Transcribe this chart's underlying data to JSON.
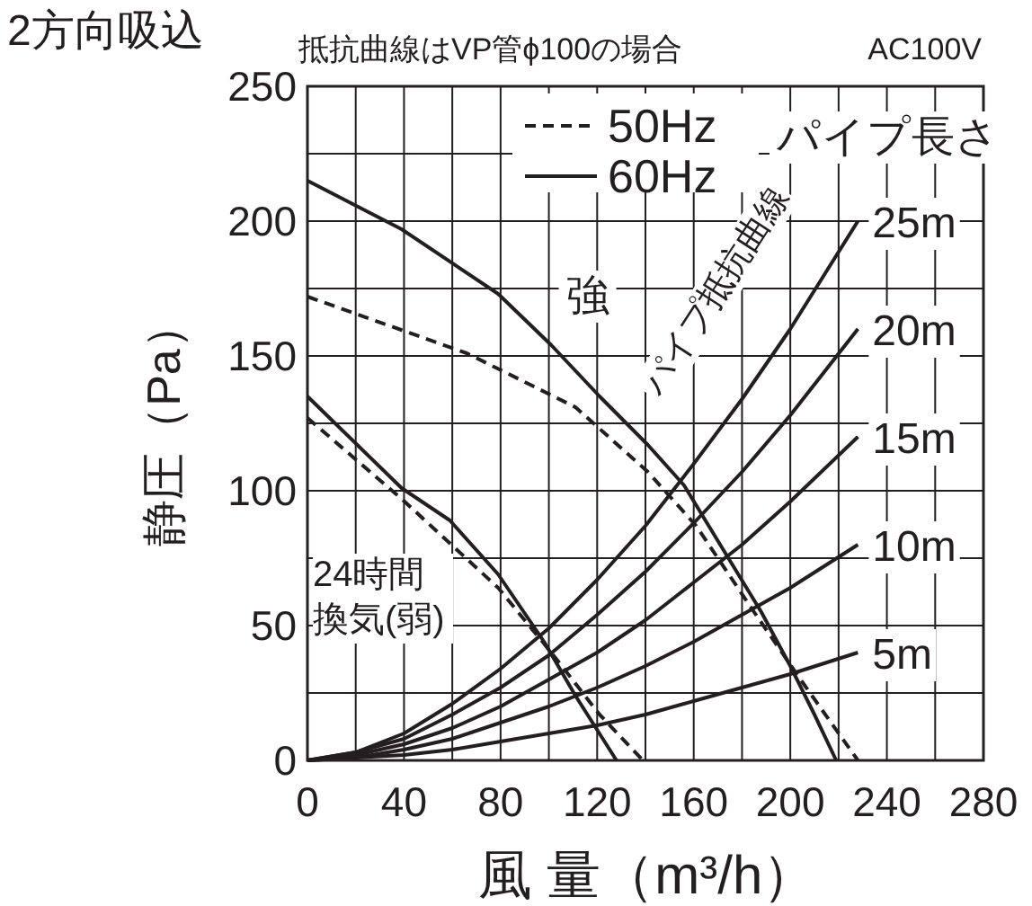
{
  "chart_data": {
    "type": "line",
    "title": "2方向吸込",
    "subtitle": "抵抗曲線はVP管ϕ100の場合",
    "xlabel": "風 量（m³/h）",
    "ylabel": "静圧（Pa）",
    "legend_title": "パイプ長さ",
    "xlim": [
      0,
      280
    ],
    "ylim": [
      0,
      250
    ],
    "xticks": [
      0,
      {
        "value": 20,
        "label": null
      },
      40,
      {
        "value": 60,
        "label": null
      },
      80,
      {
        "value": 100,
        "label": null
      },
      120,
      {
        "value": 140,
        "label": null
      },
      160,
      {
        "value": 180,
        "label": null
      },
      200,
      {
        "value": 220,
        "label": null
      },
      240,
      {
        "value": 260,
        "label": null
      },
      280
    ],
    "yticks": [
      0,
      {
        "value": 25,
        "label": null
      },
      50,
      {
        "value": 75,
        "label": null
      },
      100,
      {
        "value": 125,
        "label": null
      },
      150,
      {
        "value": 175,
        "label": null
      },
      200,
      {
        "value": 225,
        "label": null
      },
      250
    ],
    "grid": true,
    "legend": "top",
    "annotations": [
      "AC100V",
      {
        "text": "強",
        "x": 116,
        "y": 173
      },
      "パイプ抵抗曲線",
      "24時間換気(弱)"
    ],
    "series": [
      {
        "name": "60Hz",
        "color": "#231f20",
        "line_style": "solid",
        "x": [
          0,
          39,
          79,
          101,
          121,
          141,
          156,
          173,
          188,
          200,
          210,
          219
        ],
        "values": [
          215,
          197,
          173,
          154,
          135,
          117,
          102,
          77,
          55,
          35,
          17,
          0
        ]
      },
      {
        "name": "50Hz",
        "color": "#231f20",
        "line_style": "dashed",
        "x": [
          0,
          66,
          111,
          141,
          161,
          185,
          205,
          228
        ],
        "values": [
          172,
          151,
          131,
          107,
          87,
          55,
          29,
          0
        ]
      },
      {
        "color": "#231f20",
        "line_style": "solid",
        "x": [
          0,
          39,
          59,
          79,
          98,
          111,
          128
        ],
        "values": [
          135,
          101,
          89,
          69,
          44,
          24,
          0
        ]
      },
      {
        "color": "#231f20",
        "line_style": "dashed",
        "x": [
          0,
          39,
          79,
          101,
          121,
          139
        ],
        "values": [
          127,
          97,
          64,
          40,
          17,
          0
        ]
      },
      {
        "name": "25m",
        "color": "#231f20",
        "line_style": "solid",
        "x": [
          0,
          20,
          40,
          60,
          80,
          100,
          120,
          140,
          160,
          180,
          200,
          228
        ],
        "values": [
          0,
          3,
          10,
          21,
          34,
          49,
          67,
          87,
          110,
          134,
          160,
          200
        ]
      },
      {
        "name": "20m",
        "color": "#231f20",
        "line_style": "solid",
        "x": [
          0,
          20,
          40,
          60,
          80,
          100,
          120,
          140,
          160,
          180,
          200,
          228
        ],
        "values": [
          0,
          3,
          8,
          17,
          27,
          39,
          54,
          70,
          88,
          107,
          128,
          160
        ]
      },
      {
        "name": "15m",
        "color": "#231f20",
        "line_style": "solid",
        "x": [
          0,
          20,
          40,
          60,
          80,
          100,
          120,
          140,
          160,
          180,
          200,
          228
        ],
        "values": [
          0,
          2,
          6,
          12,
          20,
          30,
          40,
          52,
          66,
          80,
          96,
          120
        ]
      },
      {
        "name": "10m",
        "color": "#231f20",
        "line_style": "solid",
        "x": [
          0,
          20,
          40,
          60,
          80,
          100,
          120,
          140,
          160,
          180,
          200,
          228
        ],
        "values": [
          0,
          1,
          4,
          8,
          14,
          20,
          27,
          35,
          44,
          54,
          64,
          80
        ]
      },
      {
        "name": "5m",
        "color": "#231f20",
        "line_style": "solid",
        "x": [
          0,
          20,
          40,
          60,
          80,
          100,
          120,
          140,
          160,
          180,
          200,
          228
        ],
        "values": [
          0,
          1,
          2,
          4,
          7,
          10,
          13,
          17,
          22,
          27,
          32,
          40
        ]
      }
    ]
  }
}
